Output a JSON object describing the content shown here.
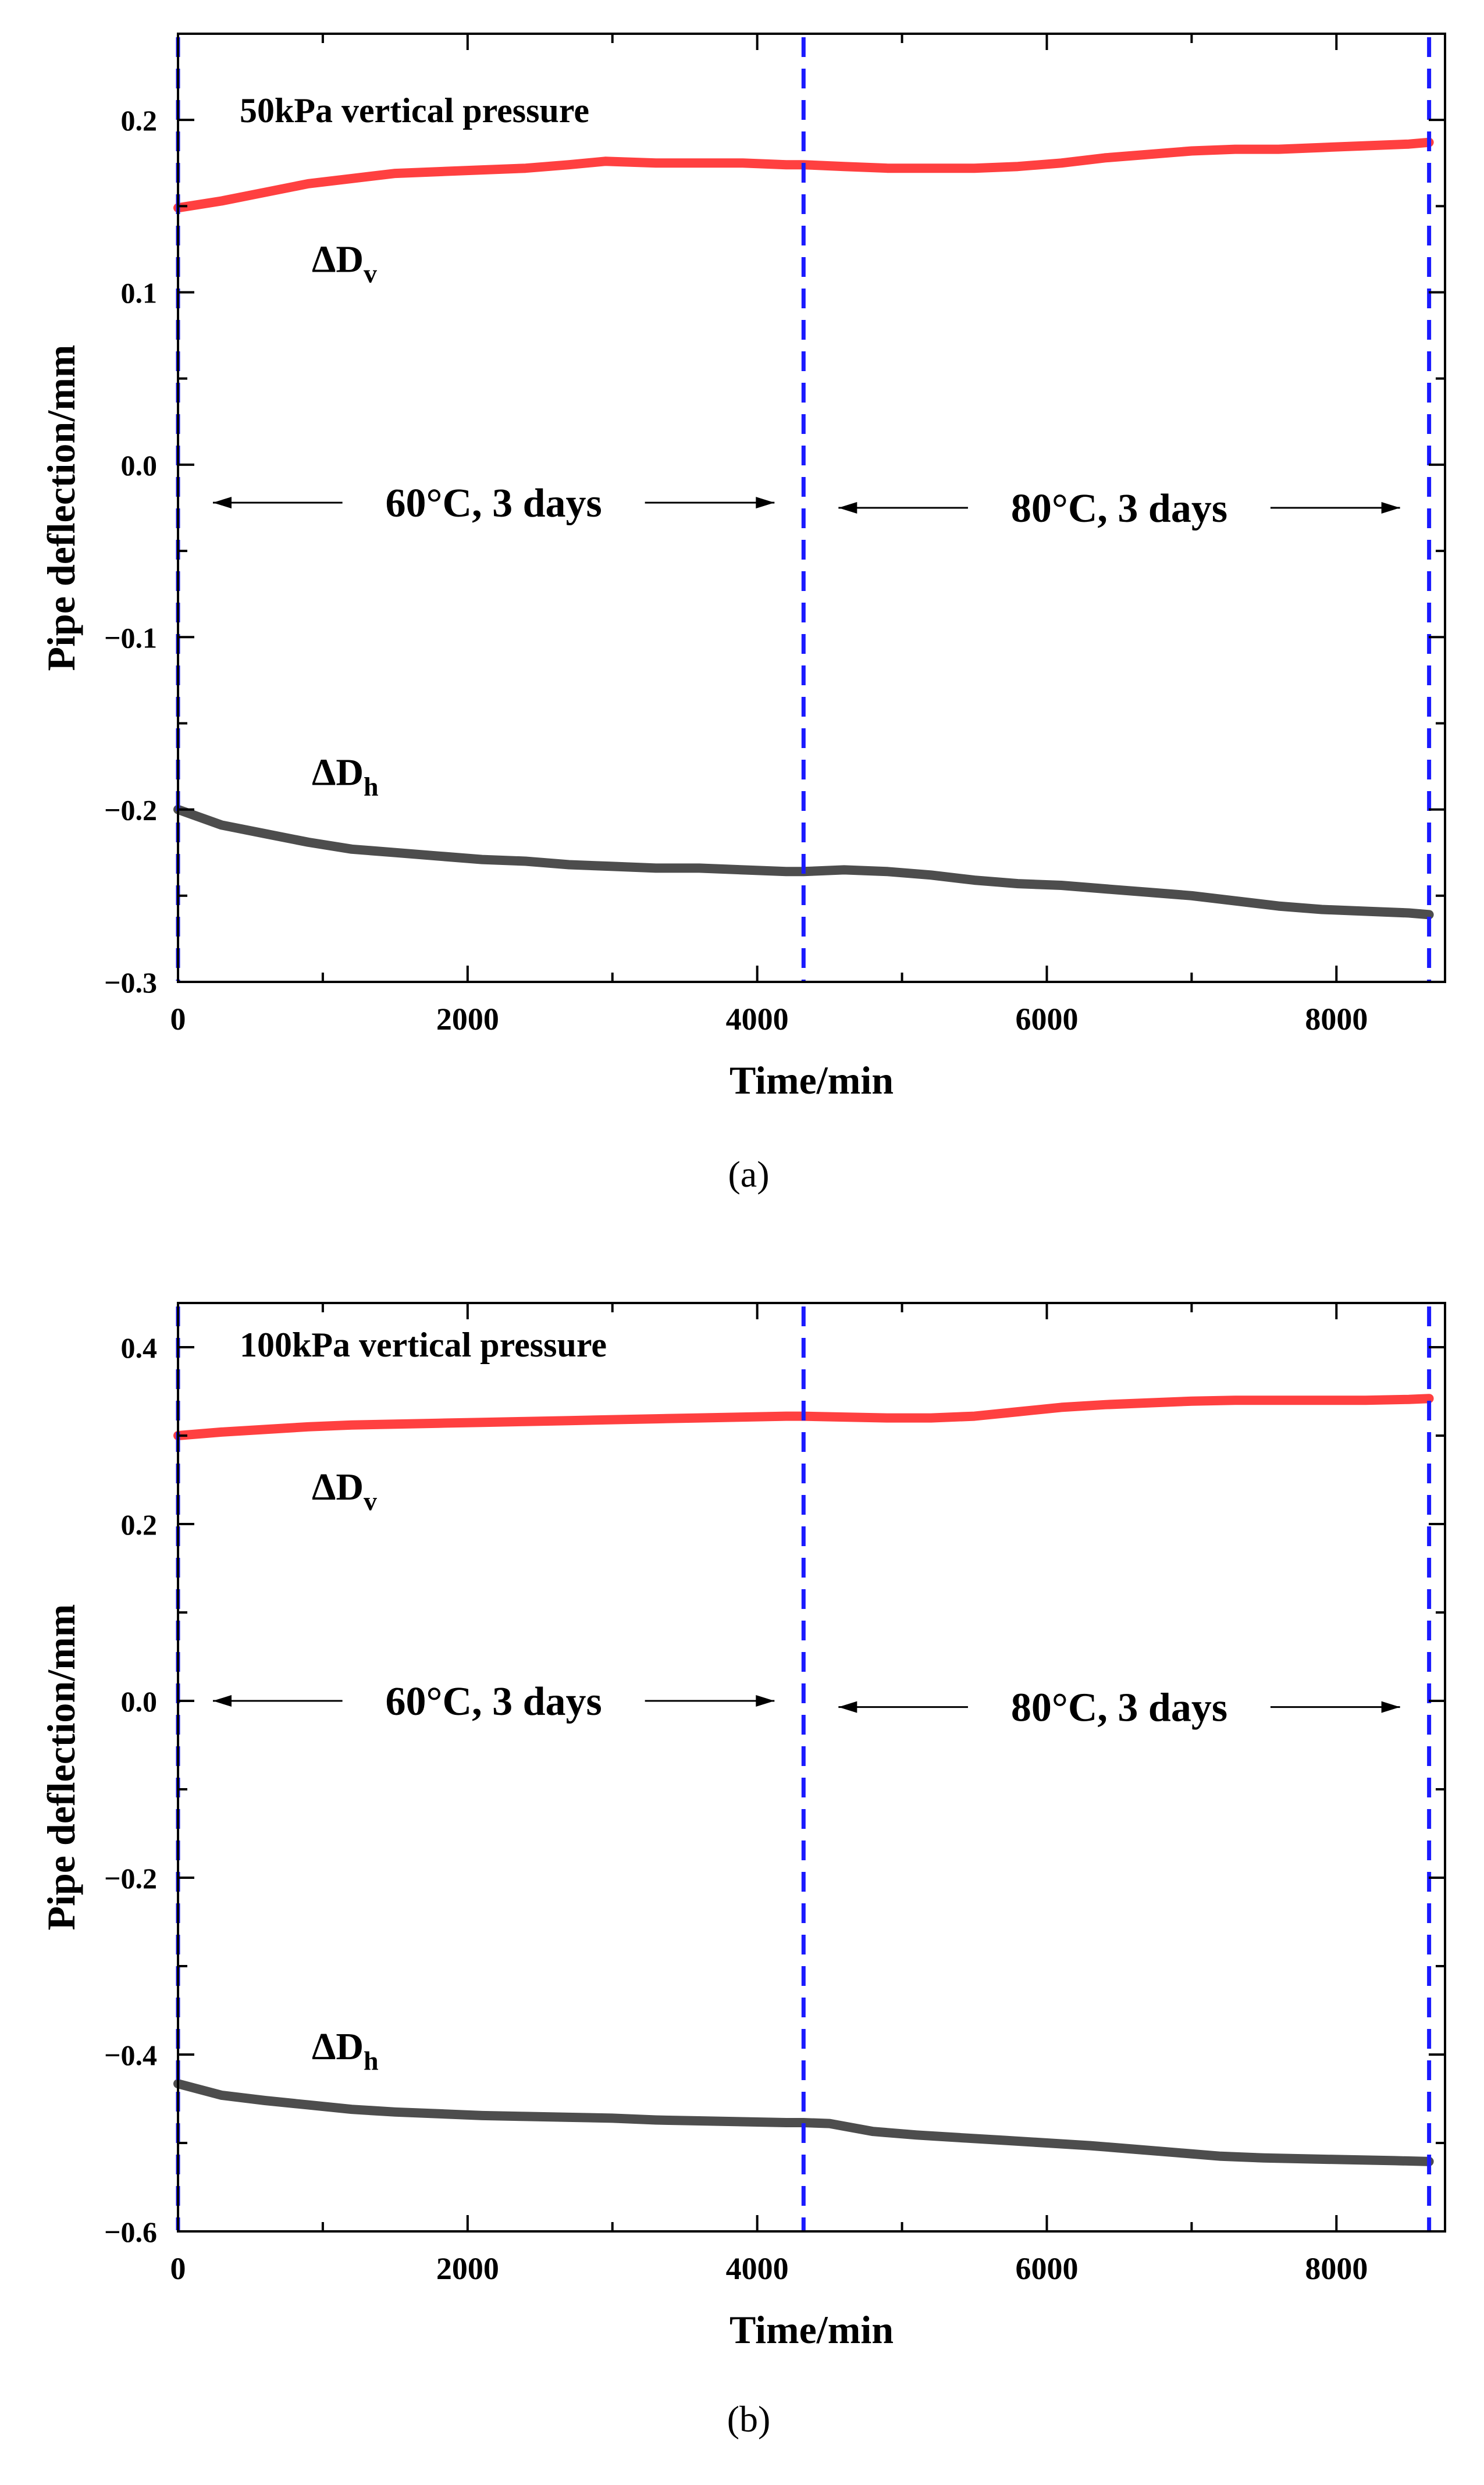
{
  "chart_data": [
    {
      "type": "line",
      "panel_label": "(a)",
      "title": "50kPa vertical pressure",
      "xlabel": "Time/min",
      "ylabel": "Pipe deflection/mm",
      "xlim": [
        0,
        8750
      ],
      "ylim": [
        -0.3,
        0.25
      ],
      "xticks": [
        0,
        2000,
        4000,
        6000,
        8000
      ],
      "xtick_labels": [
        "0",
        "2000",
        "4000",
        "6000",
        "8000"
      ],
      "yticks": [
        -0.3,
        -0.2,
        -0.1,
        0.0,
        0.1,
        0.2
      ],
      "ytick_labels": [
        "−0.3",
        "−0.2",
        "−0.1",
        "0.0",
        "0.1",
        "0.2"
      ],
      "grid": false,
      "series": [
        {
          "name": "ΔDv",
          "label_main": "ΔD",
          "label_sub": "v",
          "color": "#ff4040",
          "x": [
            0,
            300,
            600,
            900,
            1200,
            1500,
            1800,
            2100,
            2400,
            2700,
            2950,
            3300,
            3600,
            3900,
            4200,
            4320,
            4600,
            4900,
            5200,
            5500,
            5800,
            6100,
            6400,
            6700,
            7000,
            7300,
            7600,
            7900,
            8200,
            8500,
            8640
          ],
          "values": [
            0.149,
            0.153,
            0.158,
            0.163,
            0.166,
            0.169,
            0.17,
            0.171,
            0.172,
            0.174,
            0.176,
            0.175,
            0.175,
            0.175,
            0.174,
            0.174,
            0.173,
            0.172,
            0.172,
            0.172,
            0.173,
            0.175,
            0.178,
            0.18,
            0.182,
            0.183,
            0.183,
            0.184,
            0.185,
            0.186,
            0.187
          ]
        },
        {
          "name": "ΔDh",
          "label_main": "ΔD",
          "label_sub": "h",
          "color": "#4d4d4d",
          "x": [
            0,
            300,
            600,
            900,
            1200,
            1500,
            1800,
            2100,
            2400,
            2700,
            3000,
            3300,
            3600,
            3900,
            4200,
            4320,
            4600,
            4900,
            5200,
            5500,
            5800,
            6100,
            6400,
            6700,
            7000,
            7300,
            7600,
            7900,
            8200,
            8500,
            8640
          ],
          "values": [
            -0.2,
            -0.209,
            -0.214,
            -0.219,
            -0.223,
            -0.225,
            -0.227,
            -0.229,
            -0.23,
            -0.232,
            -0.233,
            -0.234,
            -0.234,
            -0.235,
            -0.236,
            -0.236,
            -0.235,
            -0.236,
            -0.238,
            -0.241,
            -0.243,
            -0.244,
            -0.246,
            -0.248,
            -0.25,
            -0.253,
            -0.256,
            -0.258,
            -0.259,
            -0.26,
            -0.261
          ]
        }
      ],
      "markers": [
        {
          "x": 0,
          "style": "dashed",
          "color": "#1a1aff"
        },
        {
          "x": 4320,
          "style": "dashed",
          "color": "#1a1aff"
        },
        {
          "x": 8640,
          "style": "dashed",
          "color": "#1a1aff"
        }
      ],
      "annotations": [
        {
          "text": "60°C, 3 days",
          "from_x": 0,
          "to_x": 4320,
          "y": -0.022
        },
        {
          "text": "80°C, 3 days",
          "from_x": 4320,
          "to_x": 8640,
          "y": -0.025
        }
      ]
    },
    {
      "type": "line",
      "panel_label": "(b)",
      "title": "100kPa vertical pressure",
      "xlabel": "Time/min",
      "ylabel": "Pipe deflection/mm",
      "xlim": [
        0,
        8750
      ],
      "ylim": [
        -0.6,
        0.45
      ],
      "xticks": [
        0,
        2000,
        4000,
        6000,
        8000
      ],
      "xtick_labels": [
        "0",
        "2000",
        "4000",
        "6000",
        "8000"
      ],
      "yticks": [
        -0.6,
        -0.4,
        -0.2,
        0.0,
        0.2,
        0.4
      ],
      "ytick_labels": [
        "−0.6",
        "−0.4",
        "−0.2",
        "0.0",
        "0.2",
        "0.4"
      ],
      "grid": false,
      "series": [
        {
          "name": "ΔDv",
          "label_main": "ΔD",
          "label_sub": "v",
          "color": "#ff4040",
          "x": [
            0,
            300,
            600,
            900,
            1200,
            1500,
            1800,
            2100,
            2400,
            2700,
            3000,
            3300,
            3600,
            3900,
            4200,
            4320,
            4600,
            4900,
            5200,
            5500,
            5800,
            6100,
            6400,
            6700,
            7000,
            7300,
            7600,
            7900,
            8200,
            8500,
            8640
          ],
          "values": [
            0.3,
            0.304,
            0.307,
            0.31,
            0.312,
            0.313,
            0.314,
            0.315,
            0.316,
            0.317,
            0.318,
            0.319,
            0.32,
            0.321,
            0.322,
            0.322,
            0.321,
            0.32,
            0.32,
            0.322,
            0.327,
            0.332,
            0.335,
            0.337,
            0.339,
            0.34,
            0.34,
            0.34,
            0.34,
            0.341,
            0.342
          ]
        },
        {
          "name": "ΔDh",
          "label_main": "ΔD",
          "label_sub": "h",
          "color": "#4d4d4d",
          "x": [
            0,
            300,
            600,
            900,
            1200,
            1500,
            1800,
            2100,
            2400,
            2700,
            3000,
            3300,
            3600,
            3900,
            4200,
            4320,
            4500,
            4800,
            5100,
            5400,
            5700,
            6000,
            6300,
            6600,
            6900,
            7200,
            7500,
            7800,
            8100,
            8400,
            8640
          ],
          "values": [
            -0.433,
            -0.446,
            -0.452,
            -0.457,
            -0.462,
            -0.465,
            -0.467,
            -0.469,
            -0.47,
            -0.471,
            -0.472,
            -0.474,
            -0.475,
            -0.476,
            -0.477,
            -0.477,
            -0.478,
            -0.487,
            -0.491,
            -0.494,
            -0.497,
            -0.5,
            -0.503,
            -0.507,
            -0.511,
            -0.515,
            -0.517,
            -0.518,
            -0.519,
            -0.52,
            -0.521
          ]
        }
      ],
      "markers": [
        {
          "x": 0,
          "style": "dashed",
          "color": "#1a1aff"
        },
        {
          "x": 4320,
          "style": "dashed",
          "color": "#1a1aff"
        },
        {
          "x": 8640,
          "style": "dashed",
          "color": "#1a1aff"
        }
      ],
      "annotations": [
        {
          "text": "60°C, 3 days",
          "from_x": 0,
          "to_x": 4320,
          "y": 0.0
        },
        {
          "text": "80°C, 3 days",
          "from_x": 4320,
          "to_x": 8640,
          "y": -0.007
        }
      ]
    }
  ]
}
